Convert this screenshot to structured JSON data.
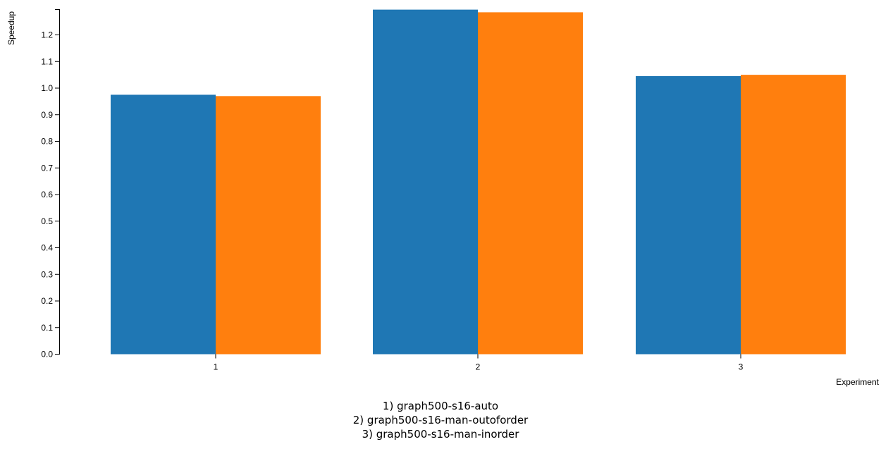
{
  "chart_data": {
    "type": "bar",
    "xlabel": "Experiment",
    "ylabel": "Speedup",
    "categories": [
      "1",
      "2",
      "3"
    ],
    "series": [
      {
        "values": [
          0.975,
          1.295,
          1.045
        ],
        "color": "#1f77b4"
      },
      {
        "values": [
          0.97,
          1.285,
          1.05
        ],
        "color": "#ff7f0e"
      }
    ],
    "ylim": [
      0,
      1.3
    ],
    "yticks": [
      0.0,
      0.1,
      0.2,
      0.3,
      0.4,
      0.5,
      0.6,
      0.7,
      0.8,
      0.9,
      1.0,
      1.1,
      1.2
    ],
    "grid": false
  },
  "caption": {
    "lines": [
      "1) graph500-s16-auto",
      "2) graph500-s16-man-outoforder",
      "3) graph500-s16-man-inorder"
    ]
  }
}
